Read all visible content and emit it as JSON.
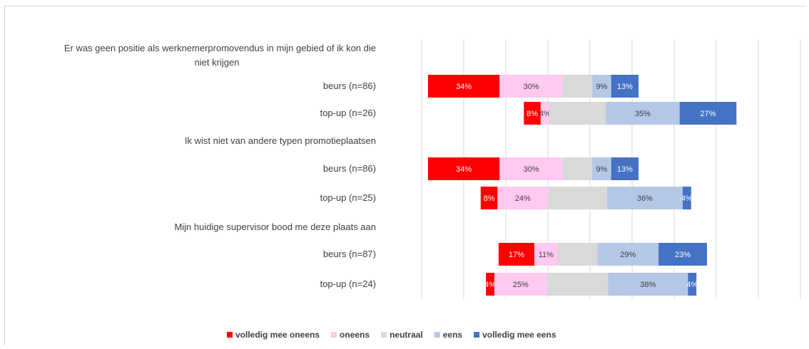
{
  "chart_data": {
    "type": "bar",
    "orientation": "horizontal",
    "stacked": true,
    "diverging": true,
    "title": "",
    "xlabel": "",
    "ylabel": "",
    "grid": true,
    "legend_position": "bottom",
    "series": [
      {
        "name": "volledig mee oneens",
        "color": "#ff0000"
      },
      {
        "name": "oneens",
        "color": "#ffc9f0"
      },
      {
        "name": "neutraal",
        "color": "#d9d9d9"
      },
      {
        "name": "eens",
        "color": "#b4c7e7"
      },
      {
        "name": "volledig mee eens",
        "color": "#4472c4"
      }
    ],
    "rows": [
      {
        "kind": "group",
        "label": "Er was geen positie als werknemerpromovendus in mijn gebied of ik kon die niet krijgen",
        "label_lines": [
          "Er was geen positie als werknemerpromovendus in mijn gebied of ik kon die",
          "niet krijgen"
        ]
      },
      {
        "kind": "bar",
        "label": "beurs (n=86)",
        "values": [
          34,
          30,
          14,
          9,
          13
        ],
        "labels": [
          "34%",
          "30%",
          "",
          "9%",
          "13%"
        ]
      },
      {
        "kind": "bar",
        "label": "top-up (n=26)",
        "values": [
          8,
          4,
          27,
          35,
          27
        ],
        "labels": [
          "8%",
          "4%",
          "",
          "35%",
          "27%"
        ]
      },
      {
        "kind": "group",
        "label": "Ik wist niet van andere typen promotieplaatsen",
        "label_lines": [
          "Ik wist niet van andere typen promotieplaatsen"
        ]
      },
      {
        "kind": "bar",
        "label": "beurs (n=86)",
        "values": [
          34,
          30,
          14,
          9,
          13
        ],
        "labels": [
          "34%",
          "30%",
          "",
          "9%",
          "13%"
        ]
      },
      {
        "kind": "bar",
        "label": "top-up (n=25)",
        "values": [
          8,
          24,
          28,
          36,
          4
        ],
        "labels": [
          "8%",
          "24%",
          "",
          "36%",
          "4%"
        ]
      },
      {
        "kind": "group",
        "label": "Mijn huidige supervisor bood me deze plaats aan",
        "label_lines": [
          "Mijn huidige supervisor bood me deze plaats aan"
        ]
      },
      {
        "kind": "bar",
        "label": "beurs (n=87)",
        "values": [
          17,
          11,
          19,
          29,
          23
        ],
        "labels": [
          "17%",
          "11%",
          "",
          "29%",
          "23%"
        ]
      },
      {
        "kind": "bar",
        "label": "top-up (n=24)",
        "values": [
          4,
          25,
          29,
          38,
          4
        ],
        "labels": [
          "4%",
          "25%",
          "",
          "38%",
          "4%"
        ]
      }
    ]
  }
}
